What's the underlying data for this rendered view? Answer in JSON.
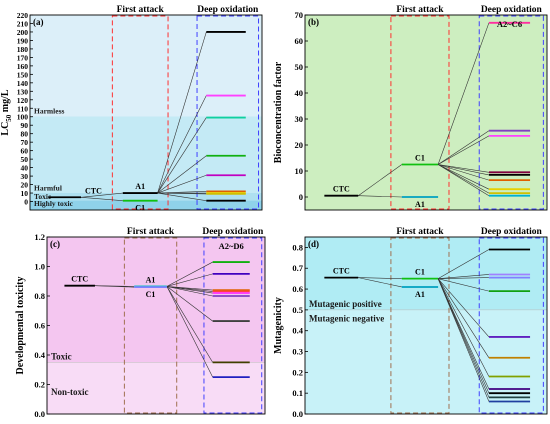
{
  "figure": {
    "type": "composite"
  },
  "chart_data": [
    {
      "id": "a",
      "type": "line",
      "panel_label": "(a)",
      "ylabel": "LC50 mg/L",
      "ylim": [
        -10,
        220
      ],
      "yticks": [
        0,
        10,
        20,
        30,
        40,
        50,
        60,
        70,
        80,
        90,
        100,
        110,
        120,
        130,
        140,
        150,
        160,
        170,
        180,
        190,
        200,
        210,
        220
      ],
      "ytick_labels": [
        "0",
        "10",
        "20",
        "30",
        "40",
        "50",
        "60",
        "70",
        "80",
        "90",
        "100",
        "110",
        "120",
        "130",
        "140",
        "150",
        "160",
        "170",
        "180",
        "190",
        "200",
        "210",
        "220"
      ],
      "background_colors": [
        "#aee0f0",
        "#c4eaf5",
        "#dceff9"
      ],
      "zones": [
        {
          "label": "Harmless",
          "from": 100,
          "to": 220,
          "color": "#dceff9"
        },
        {
          "label": "Harmful",
          "from": 10,
          "to": 100,
          "color": "#c4eaf5"
        },
        {
          "label": "Toxic",
          "from": 1,
          "to": 10,
          "color": "#aee0f0"
        },
        {
          "label": "Highly toxic",
          "from": -10,
          "to": 1,
          "color": "#8fd2ea"
        }
      ],
      "first_attack_label": "First attack",
      "deep_oxidation_label": "Deep oxidation",
      "parent": {
        "label": "CTC",
        "value": 5
      },
      "first": [
        {
          "label": "A1",
          "value": 10,
          "color": "#000000"
        },
        {
          "label": "C1",
          "value": 1,
          "color": "#10c010"
        }
      ],
      "deep": [
        {
          "value": 200,
          "color": "#000000"
        },
        {
          "value": 125,
          "color": "#ff40ff"
        },
        {
          "value": 99,
          "color": "#10d0a0"
        },
        {
          "value": 54,
          "color": "#10b010"
        },
        {
          "value": 31,
          "color": "#c000c0"
        },
        {
          "value": 12,
          "color": "#e06000"
        },
        {
          "value": 10,
          "color": "#e8d000"
        },
        {
          "value": 9,
          "color": "#d0c000"
        },
        {
          "value": 1,
          "color": "#000000"
        }
      ]
    },
    {
      "id": "b",
      "type": "line",
      "panel_label": "(b)",
      "ylabel": "Bioconcentration factor",
      "ylim": [
        -5,
        70
      ],
      "yticks": [
        0,
        10,
        20,
        30,
        40,
        50,
        60,
        70
      ],
      "ytick_labels": [
        "0",
        "10",
        "20",
        "30",
        "40",
        "50",
        "60",
        "70"
      ],
      "background_colors": [
        "#cdeec0"
      ],
      "zones": [],
      "first_attack_label": "First attack",
      "deep_oxidation_label": "Deep oxidation",
      "group_label": "A2~C6",
      "parent": {
        "label": "CTC",
        "value": 0.5
      },
      "first": [
        {
          "label": "C1",
          "value": 12.5,
          "color": "#10c010"
        },
        {
          "label": "A1",
          "value": 0,
          "color": "#00a0c0"
        }
      ],
      "deep": [
        {
          "value": 67,
          "color": "#ff30a0"
        },
        {
          "value": 25.5,
          "color": "#8040c0"
        },
        {
          "value": 23.5,
          "color": "#ff40ff"
        },
        {
          "value": 9.5,
          "color": "#800040"
        },
        {
          "value": 8.5,
          "color": "#000000"
        },
        {
          "value": 6.5,
          "color": "#e06000"
        },
        {
          "value": 3,
          "color": "#e8d000"
        },
        {
          "value": 1.5,
          "color": "#d0c000"
        },
        {
          "value": 0.5,
          "color": "#00b0d0"
        }
      ]
    },
    {
      "id": "c",
      "type": "line",
      "panel_label": "(c)",
      "ylabel": "Developmental toxicity",
      "ylim": [
        0,
        1.2
      ],
      "yticks": [
        0.0,
        0.2,
        0.4,
        0.6,
        0.8,
        1.0,
        1.2
      ],
      "ytick_labels": [
        "0.0",
        "0.2",
        "0.4",
        "0.6",
        "0.8",
        "1.0",
        "1.2"
      ],
      "background_colors": [
        "#f4c6f0"
      ],
      "zones": [
        {
          "label": "Toxic",
          "from": 0.35,
          "to": 1.2,
          "color": "#f4c6f0"
        },
        {
          "label": "Non-toxic",
          "from": 0,
          "to": 0.35,
          "color": "#f8dcf6"
        }
      ],
      "first_attack_label": "First attack",
      "deep_oxidation_label": "Deep oxidation",
      "group_label": "A2~D6",
      "parent": {
        "label": "CTC",
        "value": 0.87
      },
      "first": [
        {
          "label": "A1",
          "value": 0.865,
          "color": "#10c0c0"
        },
        {
          "label": "C1",
          "value": 0.86,
          "color": "#8080ff"
        }
      ],
      "deep": [
        {
          "value": 1.03,
          "color": "#10b010"
        },
        {
          "value": 0.95,
          "color": "#4000c0"
        },
        {
          "value": 0.84,
          "color": "#e06000"
        },
        {
          "value": 0.83,
          "color": "#ff4040"
        },
        {
          "value": 0.82,
          "color": "#ff40ff"
        },
        {
          "value": 0.8,
          "color": "#8040c0"
        },
        {
          "value": 0.63,
          "color": "#404040"
        },
        {
          "value": 0.35,
          "color": "#404000"
        },
        {
          "value": 0.25,
          "color": "#2020c0"
        }
      ]
    },
    {
      "id": "d",
      "type": "line",
      "panel_label": "(d)",
      "ylabel": "Mutagenicity",
      "ylim": [
        0,
        0.85
      ],
      "yticks": [
        0.0,
        0.1,
        0.2,
        0.3,
        0.4,
        0.5,
        0.6,
        0.7,
        0.8
      ],
      "ytick_labels": [
        "0.0",
        "0.1",
        "0.2",
        "0.3",
        "0.4",
        "0.5",
        "0.6",
        "0.7",
        "0.8"
      ],
      "background_colors": [
        "#b0ecf4"
      ],
      "zones": [
        {
          "label": "Mutagenic positive",
          "from": 0.5,
          "to": 0.85,
          "color": "#b0ecf4"
        },
        {
          "label": "Mutagenic negative",
          "from": 0,
          "to": 0.5,
          "color": "#c8f2f8"
        }
      ],
      "first_attack_label": "First attack",
      "deep_oxidation_label": "Deep oxidation",
      "parent": {
        "label": "CTC",
        "value": 0.655
      },
      "first": [
        {
          "label": "C1",
          "value": 0.65,
          "color": "#10c010"
        },
        {
          "label": "A1",
          "value": 0.61,
          "color": "#00a0c0"
        }
      ],
      "deep": [
        {
          "value": 0.79,
          "color": "#000000"
        },
        {
          "value": 0.67,
          "color": "#a080ff"
        },
        {
          "value": 0.655,
          "color": "#8080ff"
        },
        {
          "value": 0.59,
          "color": "#10a010"
        },
        {
          "value": 0.37,
          "color": "#6020c0"
        },
        {
          "value": 0.27,
          "color": "#c08000"
        },
        {
          "value": 0.18,
          "color": "#80a000"
        },
        {
          "value": 0.12,
          "color": "#400080"
        },
        {
          "value": 0.1,
          "color": "#000000"
        },
        {
          "value": 0.08,
          "color": "#204040"
        },
        {
          "value": 0.06,
          "color": "#2040a0"
        }
      ]
    }
  ]
}
